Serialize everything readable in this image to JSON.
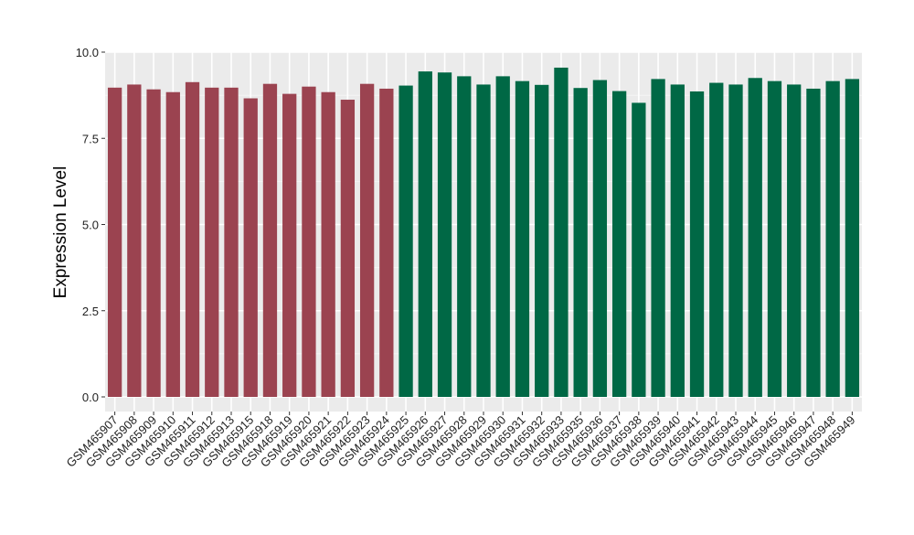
{
  "chart_data": {
    "type": "bar",
    "title": "",
    "xlabel": "",
    "ylabel": "Expression Level",
    "ylim": [
      0,
      10
    ],
    "yticks": [
      "0.0",
      "2.5",
      "5.0",
      "7.5",
      "10.0"
    ],
    "ytick_values": [
      0,
      2.5,
      5,
      7.5,
      10
    ],
    "grid": true,
    "colors": {
      "group1": "#9b4350",
      "group2": "#006845",
      "panel_bg": "#ebebeb",
      "grid": "#ffffff"
    },
    "categories": [
      "GSM465907",
      "GSM465908",
      "GSM465909",
      "GSM465910",
      "GSM465911",
      "GSM465912",
      "GSM465913",
      "GSM465915",
      "GSM465918",
      "GSM465919",
      "GSM465920",
      "GSM465921",
      "GSM465922",
      "GSM465923",
      "GSM465924",
      "GSM465925",
      "GSM465926",
      "GSM465927",
      "GSM465928",
      "GSM465929",
      "GSM465930",
      "GSM465931",
      "GSM465932",
      "GSM465933",
      "GSM465935",
      "GSM465936",
      "GSM465937",
      "GSM465938",
      "GSM465939",
      "GSM465940",
      "GSM465941",
      "GSM465942",
      "GSM465943",
      "GSM465944",
      "GSM465945",
      "GSM465946",
      "GSM465947",
      "GSM465948",
      "GSM465949"
    ],
    "values": [
      8.97,
      9.06,
      8.92,
      8.84,
      9.13,
      8.97,
      8.97,
      8.66,
      9.08,
      8.79,
      9.0,
      8.84,
      8.62,
      9.08,
      8.94,
      9.03,
      9.44,
      9.41,
      9.3,
      9.06,
      9.3,
      9.16,
      9.05,
      9.55,
      8.96,
      9.19,
      8.87,
      8.53,
      9.22,
      9.06,
      8.86,
      9.11,
      9.06,
      9.25,
      9.16,
      9.06,
      8.94,
      9.16,
      9.22
    ],
    "groups": [
      "group1",
      "group1",
      "group1",
      "group1",
      "group1",
      "group1",
      "group1",
      "group1",
      "group1",
      "group1",
      "group1",
      "group1",
      "group1",
      "group1",
      "group1",
      "group2",
      "group2",
      "group2",
      "group2",
      "group2",
      "group2",
      "group2",
      "group2",
      "group2",
      "group2",
      "group2",
      "group2",
      "group2",
      "group2",
      "group2",
      "group2",
      "group2",
      "group2",
      "group2",
      "group2",
      "group2",
      "group2",
      "group2",
      "group2"
    ]
  }
}
